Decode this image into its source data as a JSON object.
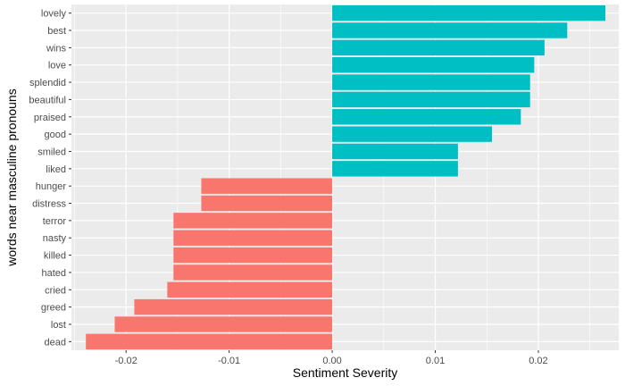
{
  "chart_data": {
    "type": "bar",
    "orientation": "horizontal",
    "xlabel": "Sentiment Severity",
    "ylabel": "words near masculine pronouns",
    "xlim": [
      -0.0253,
      0.0278
    ],
    "x_ticks": [
      -0.02,
      -0.01,
      0.0,
      0.01,
      0.02
    ],
    "x_tick_labels": [
      "-0.02",
      "-0.01",
      "0.00",
      "0.01",
      "0.02"
    ],
    "grid": true,
    "legend": "none",
    "colors": {
      "positive": "#00BFC4",
      "negative": "#F8766D",
      "panel": "#EBEBEB",
      "grid": "#FFFFFF"
    },
    "categories": [
      "lovely",
      "best",
      "wins",
      "love",
      "splendid",
      "beautiful",
      "praised",
      "good",
      "smiled",
      "liked",
      "hunger",
      "distress",
      "terror",
      "nasty",
      "killed",
      "hated",
      "cried",
      "greed",
      "lost",
      "dead"
    ],
    "values": [
      0.0265,
      0.0228,
      0.0206,
      0.0196,
      0.0192,
      0.0192,
      0.0183,
      0.0155,
      0.0122,
      0.0122,
      -0.0127,
      -0.0127,
      -0.0154,
      -0.0154,
      -0.0154,
      -0.0154,
      -0.016,
      -0.0192,
      -0.0211,
      -0.0239
    ]
  }
}
